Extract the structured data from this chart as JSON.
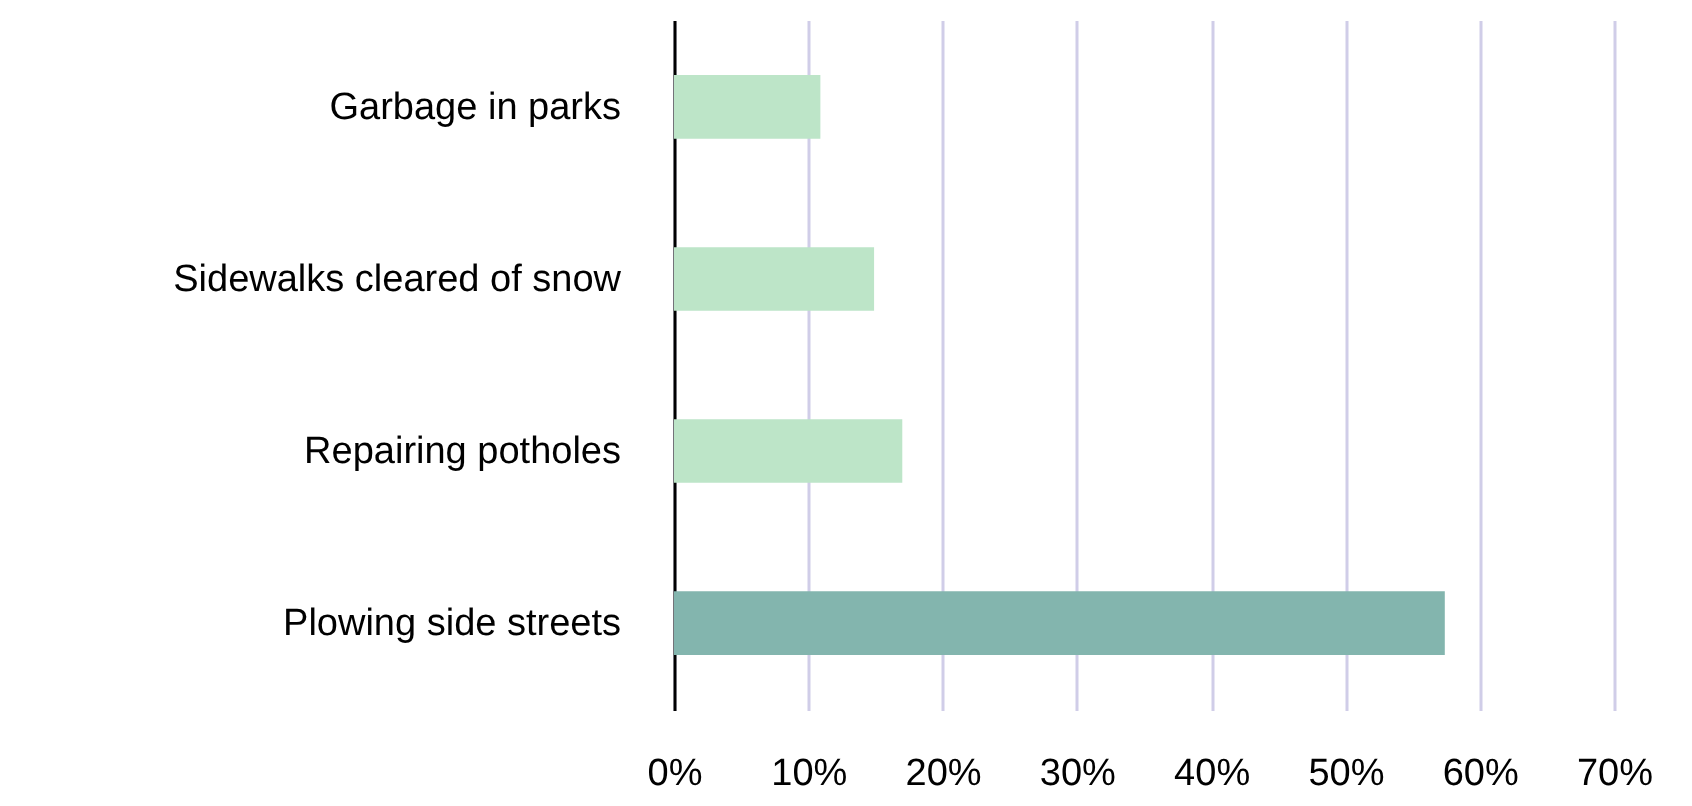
{
  "chart_data": {
    "type": "bar",
    "orientation": "horizontal",
    "categories": [
      "Garbage in parks",
      "Sidewalks cleared of snow",
      "Repairing potholes",
      "Plowing side streets"
    ],
    "values": [
      10.9,
      14.9,
      17,
      57.4
    ],
    "colors": [
      "#bde5c8",
      "#bde5c8",
      "#bde5c8",
      "#83b5ae"
    ],
    "xlim": [
      0,
      70
    ],
    "xticks": [
      {
        "value": 0,
        "label": "0%"
      },
      {
        "value": 10,
        "label": "10%"
      },
      {
        "value": 20,
        "label": "20%"
      },
      {
        "value": 30,
        "label": "30%"
      },
      {
        "value": 40,
        "label": "40%"
      },
      {
        "value": 50,
        "label": "50%"
      },
      {
        "value": 60,
        "label": "60%"
      },
      {
        "value": 70,
        "label": "70%"
      }
    ],
    "grid": "x"
  }
}
